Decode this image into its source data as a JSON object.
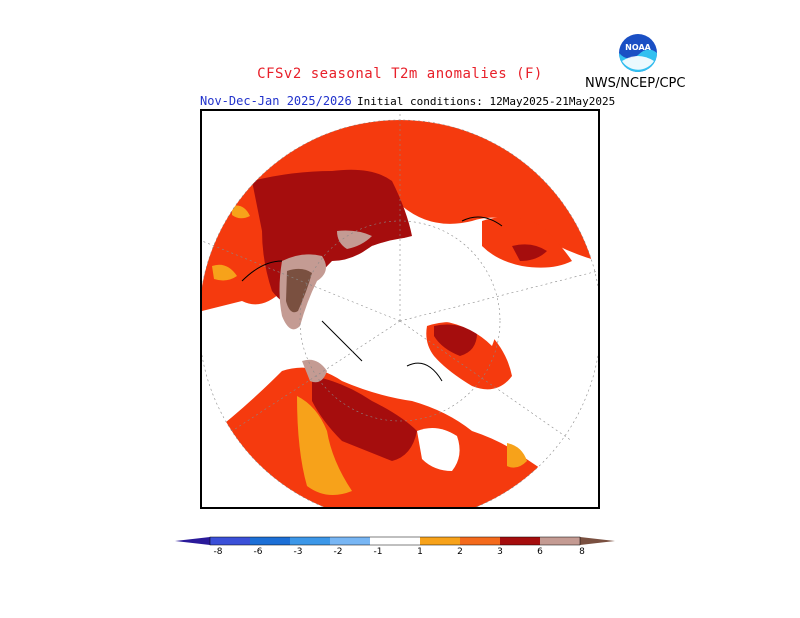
{
  "title": "CFSv2 seasonal T2m anomalies (F)",
  "subtitle_left": "Nov-Dec-Jan 2025/2026",
  "subtitle_right": "Initial conditions: 12May2025-21May2025",
  "agency": "NWS/NCEP/CPC",
  "logo_text": "NOAA",
  "colors": {
    "c_m8": "#2a1a9a",
    "c_m6": "#3b50d8",
    "c_m3": "#1c6fd6",
    "c_m2": "#3c97e8",
    "c_m1": "#78b6f4",
    "c_0": "#ffffff",
    "c_1": "#f7a21a",
    "c_2": "#f46a1c",
    "c_3": "#f53a0e",
    "c_6": "#a50d0d",
    "c_8": "#c49b93",
    "c_max": "#7a5040"
  },
  "colorbar_labels": [
    "-8",
    "-6",
    "-3",
    "-2",
    "-1",
    "1",
    "2",
    "3",
    "6",
    "8"
  ]
}
